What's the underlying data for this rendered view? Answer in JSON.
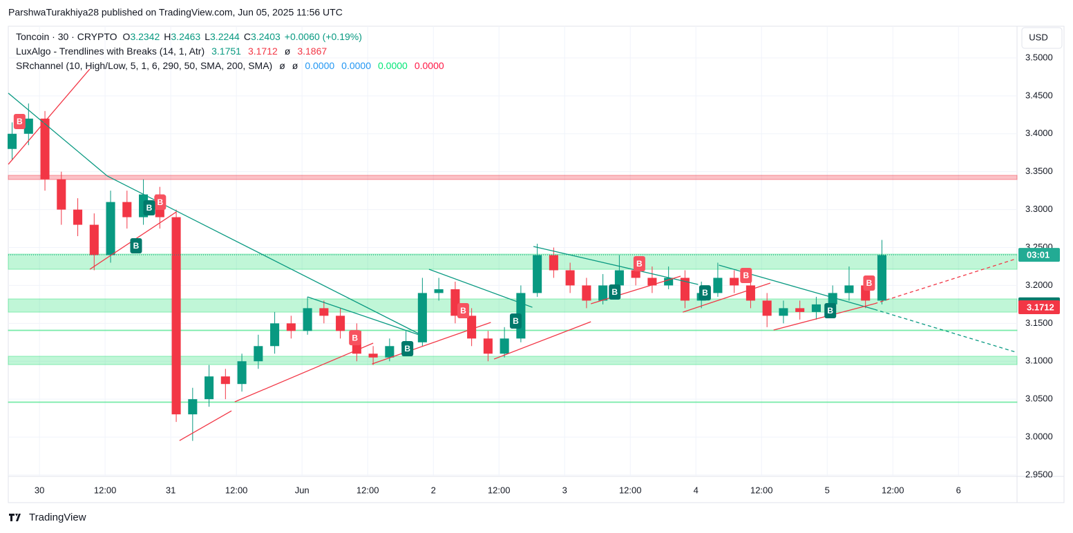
{
  "header": {
    "publisher": "ParshwaTurakhiya28 published on TradingView.com, Jun 05, 2025 11:56 UTC",
    "symbol": "Toncoin · 30 · CRYPTO",
    "o_label": "O",
    "o_value": "3.2342",
    "h_label": "H",
    "h_value": "3.2463",
    "l_label": "L",
    "l_value": "3.2244",
    "c_label": "C",
    "c_value": "3.2403",
    "change": "+0.0060 (+0.19%)",
    "indicator1": "LuxAlgo - Trendlines with Breaks (14, 1, Atr)",
    "indicator1_values": [
      "3.1751",
      "3.1712",
      "ø",
      "3.1867"
    ],
    "indicator2": "SRchannel (10, High/Low, 5, 1, 6, 290, 50, SMA, 200, SMA)",
    "indicator2_values": [
      "ø",
      "ø",
      "0.0000",
      "0.0000",
      "0.0000",
      "0.0000"
    ],
    "currency": "USD",
    "logo": "TradingView"
  },
  "chart_data": {
    "type": "candlestick",
    "up_color": "#089981",
    "down_color": "#f23645",
    "grid": true,
    "xlim": [
      -5.7,
      178.7
    ],
    "ylim": [
      2.95,
      3.54
    ],
    "xticks": [
      {
        "value": 0,
        "label": "30"
      },
      {
        "value": 12,
        "label": "12:00"
      },
      {
        "value": 24,
        "label": "31"
      },
      {
        "value": 36,
        "label": "12:00"
      },
      {
        "value": 48,
        "label": "Jun"
      },
      {
        "value": 60,
        "label": "12:00"
      },
      {
        "value": 72,
        "label": "2"
      },
      {
        "value": 84,
        "label": "12:00"
      },
      {
        "value": 96,
        "label": "3"
      },
      {
        "value": 108,
        "label": "12:00"
      },
      {
        "value": 120,
        "label": "4"
      },
      {
        "value": 132,
        "label": "12:00"
      },
      {
        "value": 144,
        "label": "5"
      },
      {
        "value": 156,
        "label": "12:00"
      },
      {
        "value": 168,
        "label": "6"
      }
    ],
    "yticks": [
      {
        "value": 2.95,
        "label": "2.9500"
      },
      {
        "value": 3.0,
        "label": "3.0000"
      },
      {
        "value": 3.05,
        "label": "3.0500"
      },
      {
        "value": 3.1,
        "label": "3.1000"
      },
      {
        "value": 3.15,
        "label": "3.1500"
      },
      {
        "value": 3.2,
        "label": "3.2000"
      },
      {
        "value": 3.25,
        "label": "3.2500"
      },
      {
        "value": 3.3,
        "label": "3.3000"
      },
      {
        "value": 3.35,
        "label": "3.3500"
      },
      {
        "value": 3.4,
        "label": "3.4000"
      },
      {
        "value": 3.45,
        "label": "3.4500"
      },
      {
        "value": 3.5,
        "label": "3.5000"
      }
    ],
    "x": [
      -5,
      -2,
      1,
      4,
      7,
      10,
      13,
      16,
      19,
      22,
      25,
      28,
      31,
      34,
      37,
      40,
      43,
      46,
      49,
      52,
      55,
      58,
      61,
      64,
      67,
      70,
      73,
      76,
      79,
      82,
      85,
      88,
      91,
      94,
      97,
      100,
      103,
      106,
      109,
      112,
      115,
      118,
      121,
      124,
      127,
      130,
      133,
      136,
      139,
      142,
      145,
      148,
      151,
      154
    ],
    "open": [
      3.38,
      3.4,
      3.42,
      3.34,
      3.3,
      3.28,
      3.24,
      3.31,
      3.29,
      3.32,
      3.29,
      3.03,
      3.05,
      3.08,
      3.07,
      3.1,
      3.12,
      3.15,
      3.14,
      3.17,
      3.16,
      3.14,
      3.11,
      3.105,
      3.12,
      3.125,
      3.19,
      3.195,
      3.16,
      3.13,
      3.11,
      3.13,
      3.19,
      3.24,
      3.22,
      3.2,
      3.18,
      3.2,
      3.22,
      3.21,
      3.2,
      3.21,
      3.18,
      3.19,
      3.21,
      3.2,
      3.18,
      3.16,
      3.17,
      3.165,
      3.175,
      3.19,
      3.2,
      3.18
    ],
    "high": [
      3.415,
      3.44,
      3.43,
      3.35,
      3.315,
      3.295,
      3.325,
      3.325,
      3.34,
      3.33,
      3.3,
      3.065,
      3.095,
      3.09,
      3.11,
      3.135,
      3.165,
      3.16,
      3.185,
      3.18,
      3.17,
      3.15,
      3.12,
      3.13,
      3.14,
      3.21,
      3.21,
      3.205,
      3.17,
      3.14,
      3.145,
      3.2,
      3.255,
      3.25,
      3.23,
      3.21,
      3.215,
      3.24,
      3.235,
      3.225,
      3.225,
      3.22,
      3.205,
      3.23,
      3.22,
      3.21,
      3.19,
      3.18,
      3.18,
      3.185,
      3.2,
      3.225,
      3.21,
      3.26
    ],
    "low": [
      3.365,
      3.385,
      3.325,
      3.28,
      3.265,
      3.22,
      3.23,
      3.275,
      3.28,
      3.275,
      3.02,
      2.995,
      3.04,
      3.05,
      3.06,
      3.09,
      3.11,
      3.13,
      3.135,
      3.15,
      3.13,
      3.1,
      3.095,
      3.1,
      3.11,
      3.12,
      3.18,
      3.15,
      3.12,
      3.1,
      3.105,
      3.125,
      3.185,
      3.21,
      3.19,
      3.17,
      3.175,
      3.195,
      3.2,
      3.19,
      3.195,
      3.17,
      3.17,
      3.185,
      3.19,
      3.17,
      3.145,
      3.15,
      3.155,
      3.155,
      3.165,
      3.18,
      3.17,
      3.175
    ],
    "close": [
      3.4,
      3.42,
      3.34,
      3.3,
      3.28,
      3.24,
      3.31,
      3.29,
      3.32,
      3.29,
      3.03,
      3.05,
      3.08,
      3.07,
      3.1,
      3.12,
      3.15,
      3.14,
      3.17,
      3.16,
      3.14,
      3.11,
      3.105,
      3.12,
      3.125,
      3.19,
      3.195,
      3.16,
      3.13,
      3.11,
      3.13,
      3.19,
      3.24,
      3.22,
      3.2,
      3.18,
      3.2,
      3.22,
      3.21,
      3.2,
      3.21,
      3.18,
      3.19,
      3.21,
      3.2,
      3.18,
      3.16,
      3.17,
      3.165,
      3.175,
      3.19,
      3.2,
      3.18,
      3.24
    ],
    "zones": [
      {
        "range": [
          3.3397,
          3.3452
        ],
        "color": "#f23645"
      },
      {
        "range": [
          3.2213,
          3.2413
        ],
        "color": "#2ee07a"
      },
      {
        "range": [
          3.1648,
          3.1822
        ],
        "color": "#2ee07a"
      },
      {
        "range": [
          3.1405,
          3.1412
        ],
        "color": "#2ee07a"
      },
      {
        "range": [
          3.0956,
          3.1066
        ],
        "color": "#2ee07a"
      },
      {
        "range": [
          3.0458,
          3.0465
        ],
        "color": "#2ee07a"
      }
    ],
    "trendlines": [
      {
        "x": [
          -5.7,
          12.4
        ],
        "y": [
          3.4536,
          3.3443
        ],
        "color": "#089981",
        "dashed": false
      },
      {
        "x": [
          12.4,
          70.5
        ],
        "y": [
          3.3443,
          3.1321
        ],
        "color": "#089981",
        "dashed": false
      },
      {
        "x": [
          49,
          70.5
        ],
        "y": [
          3.1849,
          3.1321
        ],
        "color": "#089981",
        "dashed": false
      },
      {
        "x": [
          71.2,
          90.1
        ],
        "y": [
          3.2213,
          3.1712
        ],
        "color": "#089981",
        "dashed": false
      },
      {
        "x": [
          90.3,
          120.4
        ],
        "y": [
          3.2514,
          3.2013
        ],
        "color": "#089981",
        "dashed": false
      },
      {
        "x": [
          124.2,
          152.6
        ],
        "y": [
          3.2268,
          3.1685
        ],
        "color": "#089981",
        "dashed": false
      },
      {
        "x": [
          152.6,
          178.5
        ],
        "y": [
          3.1685,
          3.112
        ],
        "color": "#089981",
        "dashed": true
      },
      {
        "x": [
          -5.7,
          9.2
        ],
        "y": [
          3.3597,
          3.4854
        ],
        "color": "#f23645",
        "dashed": false
      },
      {
        "x": [
          9.2,
          25
        ],
        "y": [
          3.2213,
          3.2969
        ],
        "color": "#f23645",
        "dashed": false
      },
      {
        "x": [
          25.6,
          35.1
        ],
        "y": [
          2.9954,
          3.0346
        ],
        "color": "#f23645",
        "dashed": false
      },
      {
        "x": [
          35.7,
          61
        ],
        "y": [
          3.0465,
          3.1239
        ],
        "color": "#f23645",
        "dashed": false
      },
      {
        "x": [
          60.8,
          82.5
        ],
        "y": [
          3.0965,
          3.1512
        ],
        "color": "#f23645",
        "dashed": false
      },
      {
        "x": [
          83.1,
          100.8
        ],
        "y": [
          3.1029,
          3.1521
        ],
        "color": "#f23645",
        "dashed": false
      },
      {
        "x": [
          100.8,
          117.2
        ],
        "y": [
          3.1758,
          3.2122
        ],
        "color": "#f23645",
        "dashed": false
      },
      {
        "x": [
          117.6,
          133.6
        ],
        "y": [
          3.1648,
          3.2031
        ],
        "color": "#f23645",
        "dashed": false
      },
      {
        "x": [
          134.2,
          152.6
        ],
        "y": [
          3.1412,
          3.1758
        ],
        "color": "#f23645",
        "dashed": false
      },
      {
        "x": [
          152.6,
          178.5
        ],
        "y": [
          3.1758,
          3.235
        ],
        "color": "#f23645",
        "dashed": true
      }
    ],
    "signals": [
      {
        "x": -3.7,
        "price": 3.4162,
        "label": "B",
        "color": "#f7525f"
      },
      {
        "x": 22,
        "price": 3.3097,
        "label": "B",
        "color": "#f7525f"
      },
      {
        "x": 57.6,
        "price": 3.1311,
        "label": "B",
        "color": "#f7525f"
      },
      {
        "x": 77.4,
        "price": 3.1667,
        "label": "B",
        "color": "#f7525f"
      },
      {
        "x": 109.6,
        "price": 3.2286,
        "label": "B",
        "color": "#f7525f"
      },
      {
        "x": 129.1,
        "price": 3.2131,
        "label": "B",
        "color": "#f7525f"
      },
      {
        "x": 151.6,
        "price": 3.2031,
        "label": "B",
        "color": "#f7525f"
      },
      {
        "x": 17.6,
        "price": 3.2523,
        "label": "B",
        "color": "#00796b"
      },
      {
        "x": 20,
        "price": 3.3024,
        "label": "B",
        "color": "#00796b"
      },
      {
        "x": 67.2,
        "price": 3.1166,
        "label": "B",
        "color": "#00796b"
      },
      {
        "x": 87,
        "price": 3.153,
        "label": "B",
        "color": "#00796b"
      },
      {
        "x": 105.1,
        "price": 3.1913,
        "label": "B",
        "color": "#00796b"
      },
      {
        "x": 121.6,
        "price": 3.1903,
        "label": "B",
        "color": "#00796b"
      },
      {
        "x": 144.5,
        "price": 3.1667,
        "label": "B",
        "color": "#00796b"
      }
    ],
    "last_price": 3.2403,
    "price_tags": [
      {
        "value": 3.2403,
        "label": "03:01",
        "color": "#22ab94"
      },
      {
        "value": 3.1751,
        "color": "#00796b"
      },
      {
        "value": 3.1712,
        "color": "#f23645"
      }
    ]
  }
}
